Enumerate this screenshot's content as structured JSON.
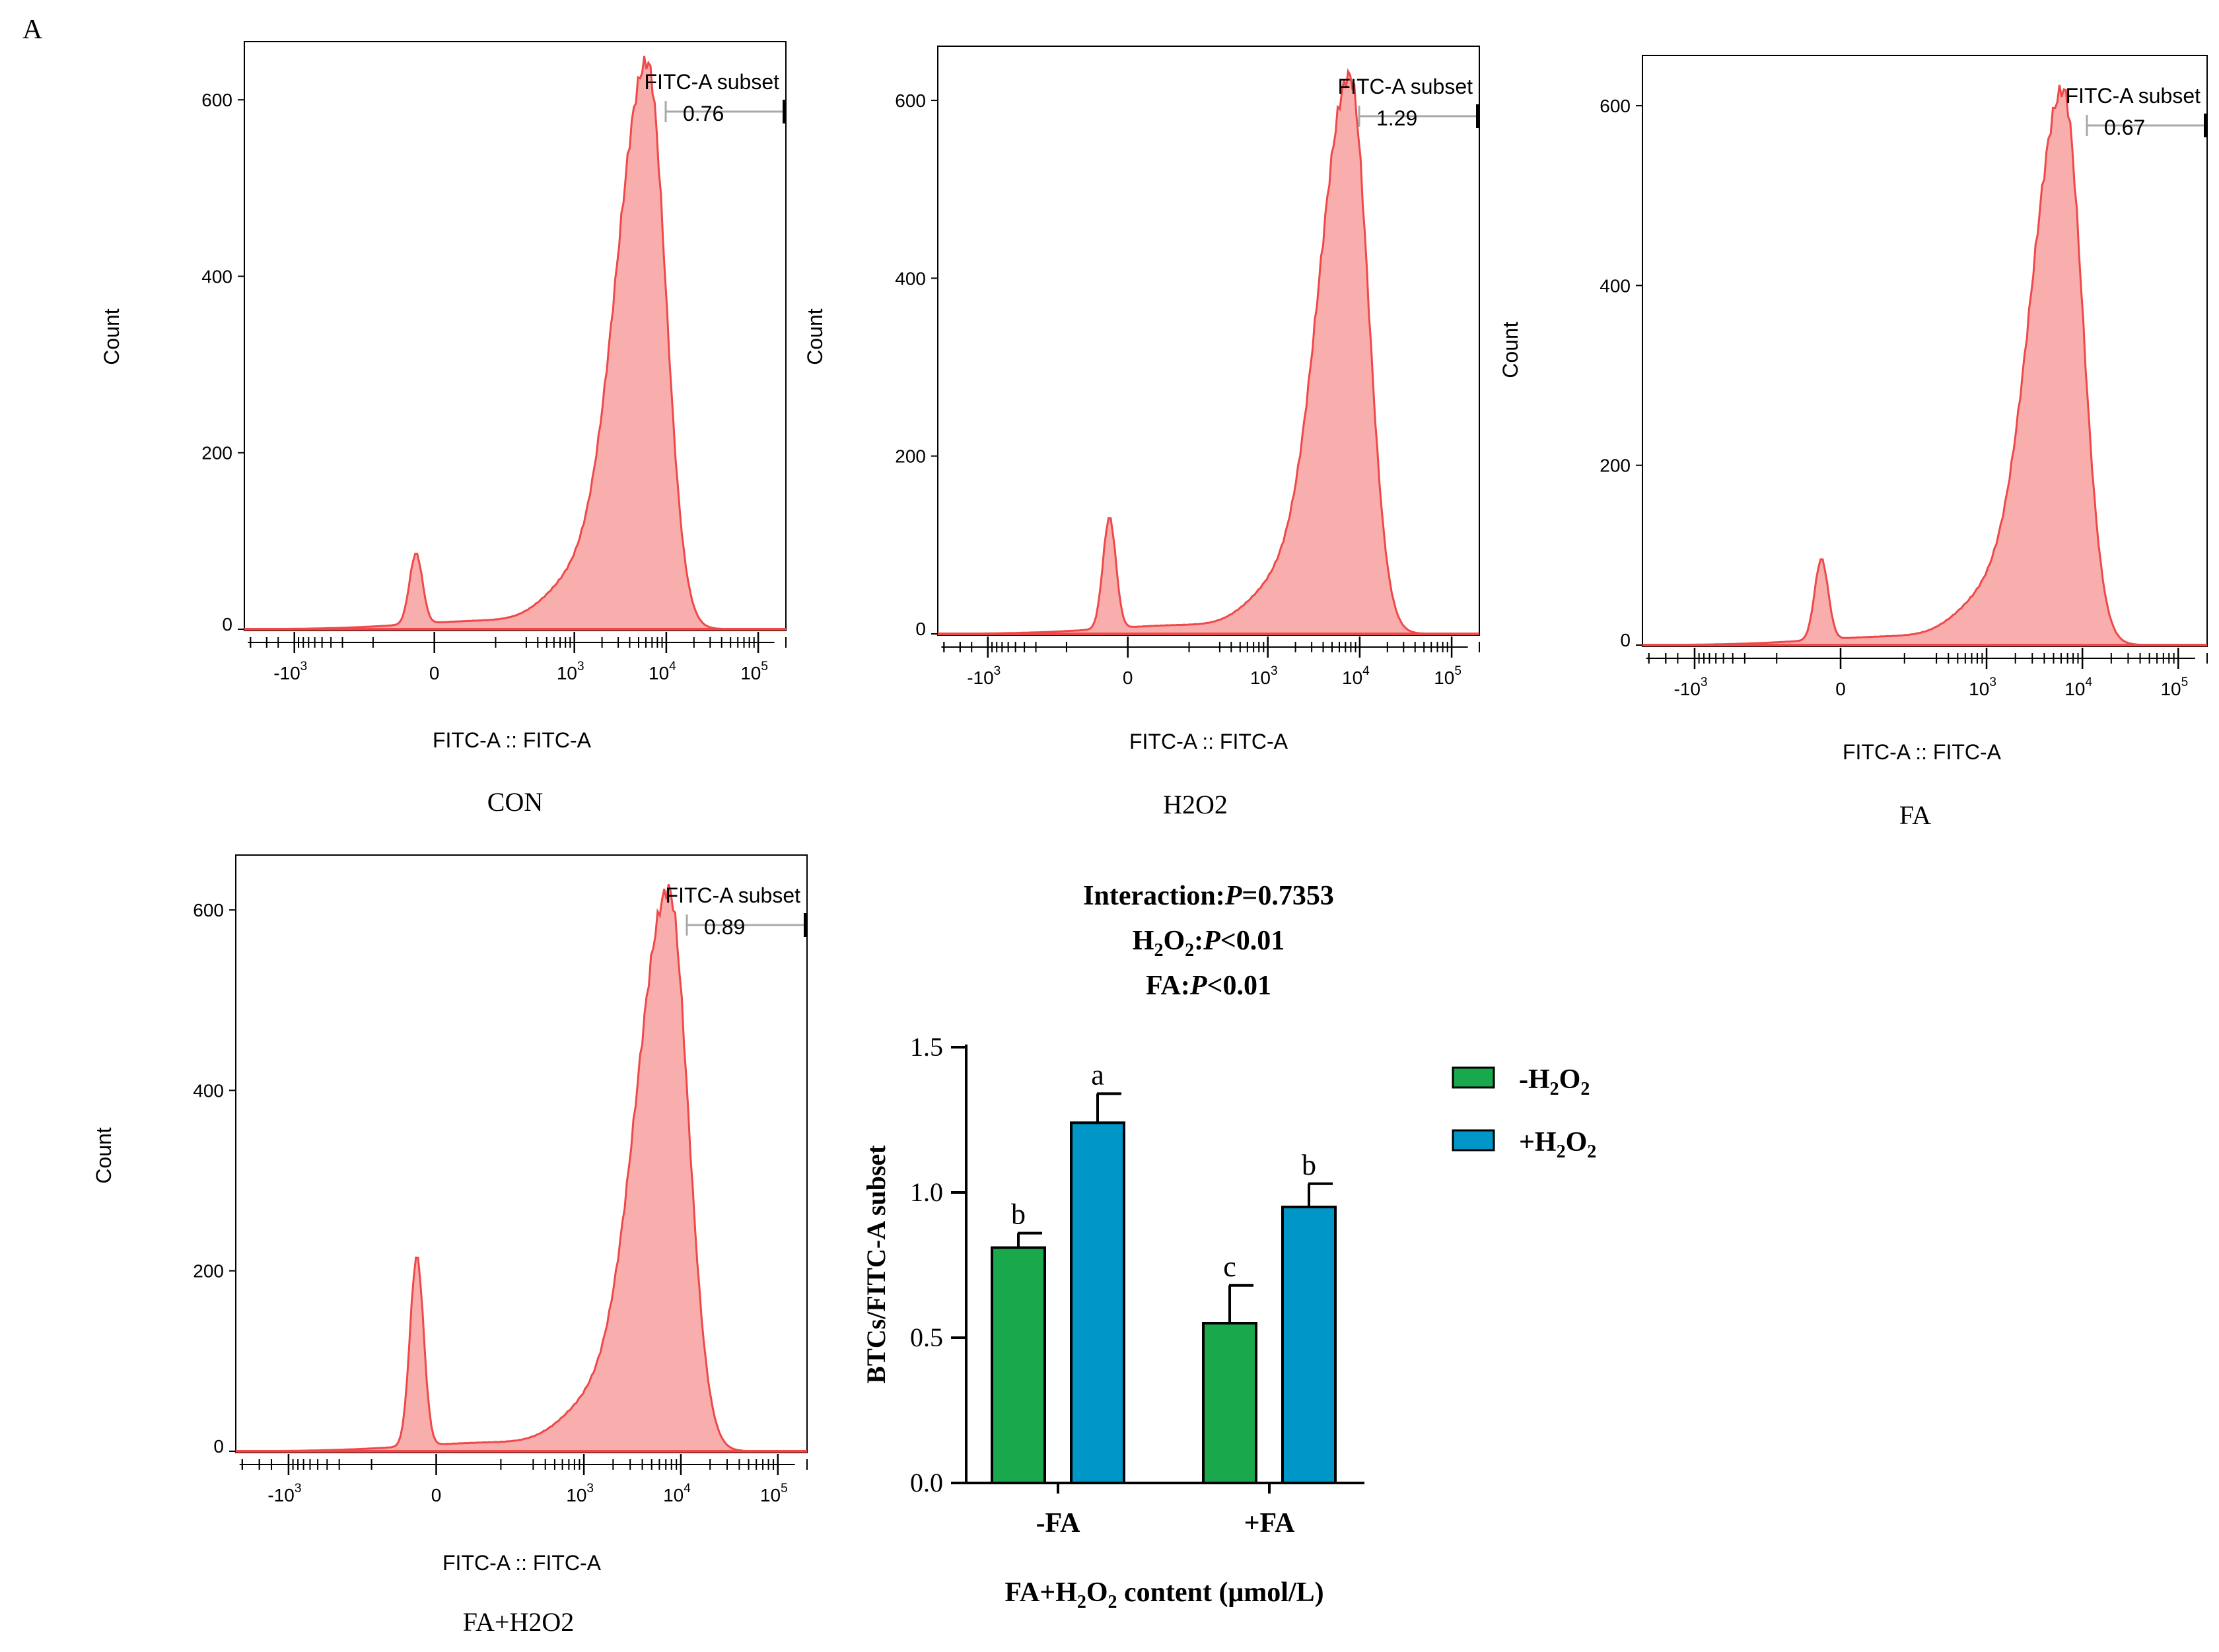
{
  "panel_label": "A",
  "colors": {
    "hist_fill": "#f9aeae",
    "hist_line": "#f04848",
    "gate_gray": "#a8a8a8",
    "bar_minus": "#19a84c",
    "bar_plus": "#0096c7",
    "axis": "#000000"
  },
  "chart_data": [
    {
      "id": "con",
      "type": "area",
      "subtype": "flow-cytometry-histogram",
      "title": "CON",
      "xlabel": "FITC-A :: FITC-A",
      "ylabel": "Count",
      "ylim": [
        0,
        660
      ],
      "yticks": [
        "0",
        "200",
        "400",
        "600"
      ],
      "xtick_labels": [
        {
          "base": "-10",
          "exp": "3",
          "value": -1000
        },
        {
          "base": "0",
          "exp": "",
          "value": 0
        },
        {
          "base": "10",
          "exp": "3",
          "value": 1000
        },
        {
          "base": "10",
          "exp": "4",
          "value": 10000
        },
        {
          "base": "10",
          "exp": "5",
          "value": 100000
        }
      ],
      "gate": {
        "name": "FITC-A subset",
        "value": "0.76"
      },
      "peaks": [
        {
          "fitc": -60,
          "count": 80,
          "kind": "small"
        },
        {
          "fitc": 6200,
          "count": 640,
          "kind": "main"
        }
      ]
    },
    {
      "id": "h2o2",
      "type": "area",
      "subtype": "flow-cytometry-histogram",
      "title": "H2O2",
      "xlabel": "FITC-A :: FITC-A",
      "ylabel": "Count",
      "ylim": [
        0,
        655
      ],
      "yticks": [
        "0",
        "200",
        "400",
        "600"
      ],
      "xtick_labels": [
        {
          "base": "-10",
          "exp": "3",
          "value": -1000
        },
        {
          "base": "0",
          "exp": "",
          "value": 0
        },
        {
          "base": "10",
          "exp": "3",
          "value": 1000
        },
        {
          "base": "10",
          "exp": "4",
          "value": 10000
        },
        {
          "base": "10",
          "exp": "5",
          "value": 100000
        }
      ],
      "gate": {
        "name": "FITC-A subset",
        "value": "1.29"
      },
      "peaks": [
        {
          "fitc": -60,
          "count": 125,
          "kind": "small"
        },
        {
          "fitc": 7800,
          "count": 625,
          "kind": "main"
        }
      ]
    },
    {
      "id": "fa",
      "type": "area",
      "subtype": "flow-cytometry-histogram",
      "title": "FA",
      "xlabel": "FITC-A :: FITC-A",
      "ylabel": "Count",
      "ylim": [
        0,
        650
      ],
      "yticks": [
        "0",
        "200",
        "400",
        "600"
      ],
      "xtick_labels": [
        {
          "base": "-10",
          "exp": "3",
          "value": -1000
        },
        {
          "base": "0",
          "exp": "",
          "value": 0
        },
        {
          "base": "10",
          "exp": "3",
          "value": 1000
        },
        {
          "base": "10",
          "exp": "4",
          "value": 10000
        },
        {
          "base": "10",
          "exp": "5",
          "value": 100000
        }
      ],
      "gate": {
        "name": "FITC-A subset",
        "value": "0.67"
      },
      "peaks": [
        {
          "fitc": -60,
          "count": 90,
          "kind": "small"
        },
        {
          "fitc": 6300,
          "count": 615,
          "kind": "main"
        }
      ]
    },
    {
      "id": "fa_h2o2",
      "type": "area",
      "subtype": "flow-cytometry-histogram",
      "title": "FA+H2O2",
      "xlabel": "FITC-A :: FITC-A",
      "ylabel": "Count",
      "ylim": [
        0,
        655
      ],
      "yticks": [
        "0",
        "200",
        "400",
        "600"
      ],
      "xtick_labels": [
        {
          "base": "-10",
          "exp": "3",
          "value": -1000
        },
        {
          "base": "0",
          "exp": "",
          "value": 0
        },
        {
          "base": "10",
          "exp": "3",
          "value": 1000
        },
        {
          "base": "10",
          "exp": "4",
          "value": 10000
        },
        {
          "base": "10",
          "exp": "5",
          "value": 100000
        }
      ],
      "gate": {
        "name": "FITC-A subset",
        "value": "0.89"
      },
      "peaks": [
        {
          "fitc": -60,
          "count": 210,
          "kind": "small"
        },
        {
          "fitc": 7500,
          "count": 620,
          "kind": "main"
        }
      ]
    },
    {
      "id": "bar",
      "type": "bar",
      "stats": {
        "interaction": {
          "label": "Interaction:",
          "p": "P",
          "value": "=0.7353"
        },
        "h2o2": {
          "h": "H",
          "sub1": "2",
          "o": "O",
          "sub2": "2",
          "colon": ":",
          "p": "P",
          "value": "<0.01"
        },
        "fa": {
          "label": "FA:",
          "p": "P",
          "value": "<0.01"
        }
      },
      "categories": [
        "-FA",
        "+FA"
      ],
      "series": [
        {
          "name": "-H2O2",
          "legend": {
            "prefix": "-H",
            "sub1": "2",
            "mid": "O",
            "sub2": "2"
          },
          "color": "#19a84c",
          "values": [
            0.81,
            0.55
          ],
          "errors": [
            0.05,
            0.13
          ],
          "letters": [
            "b",
            "c"
          ]
        },
        {
          "name": "+H2O2",
          "legend": {
            "prefix": "+H",
            "sub1": "2",
            "mid": "O",
            "sub2": "2"
          },
          "color": "#0096c7",
          "values": [
            1.24,
            0.95
          ],
          "errors": [
            0.1,
            0.08
          ],
          "letters": [
            "a",
            "b"
          ]
        }
      ],
      "ylim": [
        0.0,
        1.5
      ],
      "yticks": [
        0.0,
        0.5,
        1.0,
        1.5
      ],
      "ytick_labels": [
        "0.0",
        "0.5",
        "1.0",
        "1.5"
      ],
      "ylabel": "BTCs/FITC-A subset",
      "xlabel": {
        "pre": "FA+H",
        "sub1": "2",
        "mid": "O",
        "sub2": "2",
        "post": " content (μmol/L)"
      }
    }
  ]
}
